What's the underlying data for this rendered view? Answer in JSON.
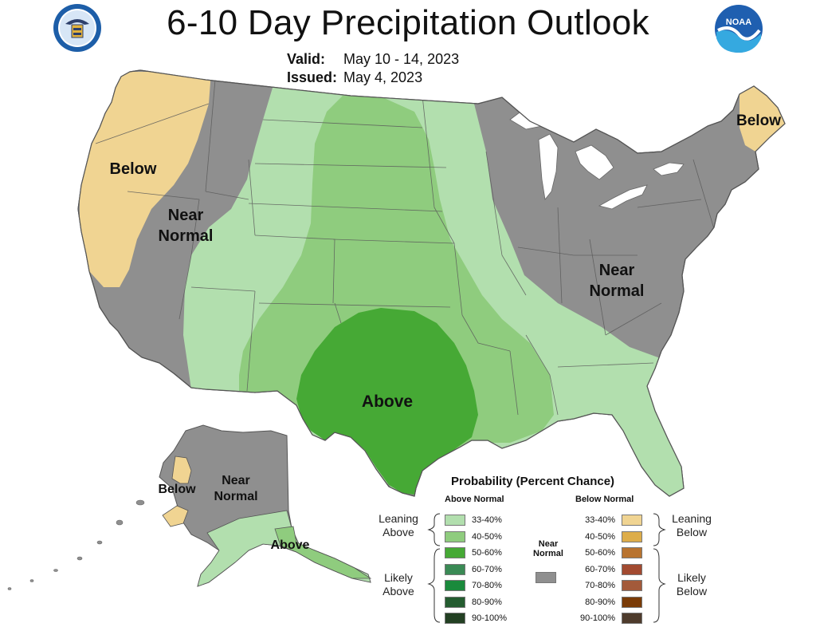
{
  "header": {
    "title": "6-10 Day Precipitation Outlook",
    "valid_label": "Valid:",
    "valid_value": "May 10 - 14, 2023",
    "issued_label": "Issued:",
    "issued_value": "May 4, 2023",
    "left_logo_icon": "department-of-commerce-seal",
    "right_logo_icon": "noaa-logo",
    "right_logo_text": "NOAA"
  },
  "map": {
    "region_labels": {
      "west_below": "Below",
      "west_near_1": "Near",
      "west_near_2": "Normal",
      "central_above": "Above",
      "east_near_1": "Near",
      "east_near_2": "Normal",
      "maine_below": "Below",
      "alaska_below": "Below",
      "alaska_near_1": "Near",
      "alaska_near_2": "Normal",
      "alaska_above": "Above"
    },
    "colors": {
      "near_normal": "#8f8f8f",
      "lean_above": "#b2dfae",
      "above_40_50": "#8fcc7e",
      "above_50_60": "#46a935",
      "lean_below": "#f0d492",
      "lakes": "#ffffff"
    }
  },
  "legend": {
    "title": "Probability (Percent Chance)",
    "above_header": "Above Normal",
    "below_header": "Below Normal",
    "near_header_1": "Near",
    "near_header_2": "Normal",
    "near_color": "#8f8f8f",
    "leaning_above_1": "Leaning",
    "leaning_above_2": "Above",
    "likely_above_1": "Likely",
    "likely_above_2": "Above",
    "leaning_below_1": "Leaning",
    "leaning_below_2": "Below",
    "likely_below_1": "Likely",
    "likely_below_2": "Below",
    "above_rows": [
      {
        "label": "33-40%",
        "color": "#b2dfae"
      },
      {
        "label": "40-50%",
        "color": "#8fcc7e"
      },
      {
        "label": "50-60%",
        "color": "#46a935"
      },
      {
        "label": "60-70%",
        "color": "#3a8a55"
      },
      {
        "label": "70-80%",
        "color": "#1a8a3c"
      },
      {
        "label": "80-90%",
        "color": "#245c30"
      },
      {
        "label": "90-100%",
        "color": "#234023"
      }
    ],
    "below_rows": [
      {
        "label": "33-40%",
        "color": "#f0d492"
      },
      {
        "label": "40-50%",
        "color": "#ddad4a"
      },
      {
        "label": "50-60%",
        "color": "#b8732f"
      },
      {
        "label": "60-70%",
        "color": "#a24a30"
      },
      {
        "label": "70-80%",
        "color": "#a35a3a"
      },
      {
        "label": "80-90%",
        "color": "#7a3b07"
      },
      {
        "label": "90-100%",
        "color": "#4e3b2c"
      }
    ]
  }
}
